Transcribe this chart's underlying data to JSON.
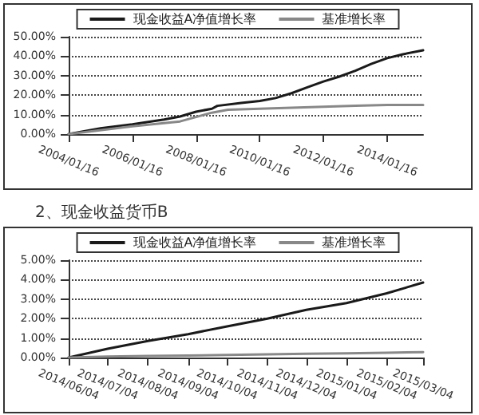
{
  "chart_data": [
    {
      "type": "line",
      "legend": "top",
      "grid": "y",
      "marker": "none",
      "line_style": "solid",
      "xlim": [
        "2004-01-16",
        "2015-03-04"
      ],
      "xticks": [
        {
          "value": "2004-01-16",
          "label": "2004/01/16"
        },
        {
          "value": "2006-01-16",
          "label": "2006/01/16"
        },
        {
          "value": "2008-01-16",
          "label": "2008/01/16"
        },
        {
          "value": "2010-01-16",
          "label": "2010/01/16"
        },
        {
          "value": "2012-01-16",
          "label": "2012/01/16"
        },
        {
          "value": "2014-01-16",
          "label": "2014/01/16"
        }
      ],
      "ylim": [
        0,
        50
      ],
      "yticks": [
        {
          "value": 0,
          "label": "0.00%"
        },
        {
          "value": 10,
          "label": "10.00%"
        },
        {
          "value": 20,
          "label": "20.00%"
        },
        {
          "value": 30,
          "label": "30.00%"
        },
        {
          "value": 40,
          "label": "40.00%"
        },
        {
          "value": 50,
          "label": "50.00%"
        }
      ],
      "series": [
        {
          "name": "现金收益A净值增长率",
          "color": "#1a1a1a",
          "x": [
            "2004-01-16",
            "2005-01-16",
            "2006-01-16",
            "2007-01-16",
            "2007-07-16",
            "2008-01-16",
            "2008-07-16",
            "2008-09-16",
            "2009-06-16",
            "2010-01-16",
            "2010-07-16",
            "2011-01-16",
            "2011-07-16",
            "2012-01-16",
            "2012-07-16",
            "2013-01-16",
            "2013-07-16",
            "2014-01-16",
            "2014-07-16",
            "2015-03-04"
          ],
          "values": [
            0,
            3,
            5,
            7.5,
            9,
            11.5,
            13,
            14.5,
            16,
            17,
            18.5,
            21,
            24,
            27,
            29.5,
            32.5,
            36,
            39,
            41,
            43
          ]
        },
        {
          "name": "基准增长率",
          "color": "#888888",
          "x": [
            "2004-01-16",
            "2006-01-16",
            "2007-07-16",
            "2008-07-16",
            "2009-01-16",
            "2010-01-16",
            "2011-01-16",
            "2012-01-16",
            "2013-01-16",
            "2014-01-16",
            "2015-03-04"
          ],
          "values": [
            0,
            4,
            6.5,
            11,
            12.5,
            13,
            13.5,
            14,
            14.5,
            15,
            15
          ]
        }
      ]
    },
    {
      "type": "line",
      "title": "2、现金收益货币B",
      "legend": "top",
      "grid": "y",
      "marker": "none",
      "line_style": "solid",
      "xlim": [
        "2014-06-04",
        "2015-03-04"
      ],
      "xticks": [
        {
          "value": "2014-06-04",
          "label": "2014/06/04"
        },
        {
          "value": "2014-07-04",
          "label": "2014/07/04"
        },
        {
          "value": "2014-08-04",
          "label": "2014/08/04"
        },
        {
          "value": "2014-09-04",
          "label": "2014/09/04"
        },
        {
          "value": "2014-10-04",
          "label": "2014/10/04"
        },
        {
          "value": "2014-11-04",
          "label": "2014/11/04"
        },
        {
          "value": "2014-12-04",
          "label": "2014/12/04"
        },
        {
          "value": "2015-01-04",
          "label": "2015/01/04"
        },
        {
          "value": "2015-02-04",
          "label": "2015/02/04"
        },
        {
          "value": "2015-03-04",
          "label": "2015/03/04"
        }
      ],
      "ylim": [
        0,
        5
      ],
      "yticks": [
        {
          "value": 0,
          "label": "0.00%"
        },
        {
          "value": 1,
          "label": "1.00%"
        },
        {
          "value": 2,
          "label": "2.00%"
        },
        {
          "value": 3,
          "label": "3.00%"
        },
        {
          "value": 4,
          "label": "4.00%"
        },
        {
          "value": 5,
          "label": "5.00%"
        }
      ],
      "series": [
        {
          "name": "现金收益A净值增长率",
          "color": "#1a1a1a",
          "x": [
            "2014-06-04",
            "2014-07-04",
            "2014-08-04",
            "2014-09-04",
            "2014-10-04",
            "2014-11-04",
            "2014-12-04",
            "2015-01-04",
            "2015-02-04",
            "2015-03-04"
          ],
          "values": [
            0,
            0.45,
            0.85,
            1.2,
            1.6,
            2.0,
            2.45,
            2.8,
            3.3,
            3.85
          ]
        },
        {
          "name": "基准增长率",
          "color": "#888888",
          "x": [
            "2014-06-04",
            "2014-07-04",
            "2014-08-04",
            "2014-09-04",
            "2014-10-04",
            "2014-11-04",
            "2014-12-04",
            "2015-01-04",
            "2015-02-04",
            "2015-03-04"
          ],
          "values": [
            0,
            0.05,
            0.08,
            0.1,
            0.13,
            0.16,
            0.19,
            0.22,
            0.25,
            0.28
          ]
        }
      ]
    }
  ]
}
